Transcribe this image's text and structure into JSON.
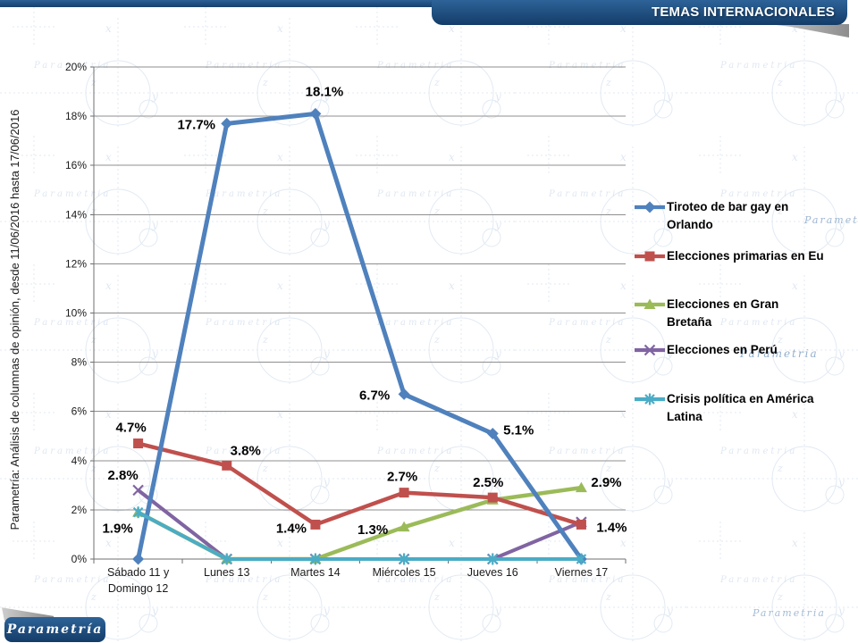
{
  "header": {
    "title": "TEMAS INTERNACIONALES"
  },
  "side_caption": {
    "text": "Parametría: Análisis de columnas de opinión, desde 11/06/2016 hasta 17/06/2016"
  },
  "watermark": {
    "text": "Parametria"
  },
  "logo": {
    "text": "Parametría"
  },
  "colors": {
    "header_bar": "#1c4a7c",
    "fold_gray": "#9a9a9a",
    "gridline": "#8f8f8f",
    "axis": "#6f6f6f",
    "watermark_blue": "#c9d8e9",
    "label_text": "#000000"
  },
  "chart_data": {
    "type": "line",
    "title": "TEMAS INTERNACIONALES",
    "grid": true,
    "legend_position": "right",
    "ylim": [
      0,
      20
    ],
    "categories": [
      "Sábado 11 y\nDomingo 12",
      "Lunes 13",
      "Martes 14",
      "Miércoles 15",
      "Jueves 16",
      "Viernes 17"
    ],
    "y_ticks": [
      {
        "value": 0,
        "label": "0%"
      },
      {
        "value": 2,
        "label": "2%"
      },
      {
        "value": 4,
        "label": "4%"
      },
      {
        "value": 6,
        "label": "6%"
      },
      {
        "value": 8,
        "label": "8%"
      },
      {
        "value": 10,
        "label": "10%"
      },
      {
        "value": 12,
        "label": "12%"
      },
      {
        "value": 14,
        "label": "14%"
      },
      {
        "value": 16,
        "label": "16%"
      },
      {
        "value": 18,
        "label": "18%"
      },
      {
        "value": 20,
        "label": "20%"
      }
    ],
    "series": [
      {
        "name": "Tiroteo de bar gay en Orlando",
        "color": "#4F81BD",
        "marker": "diamond",
        "values": [
          0,
          17.7,
          18.1,
          6.7,
          5.1,
          0
        ],
        "point_labels": [
          null,
          "17.7%",
          "18.1%",
          "6.7%",
          "5.1%",
          null
        ]
      },
      {
        "name": "Elecciones primarias en Eu",
        "color": "#C0504D",
        "marker": "square",
        "values": [
          4.7,
          3.8,
          1.4,
          2.7,
          2.5,
          1.4
        ],
        "point_labels": [
          "4.7%",
          "3.8%",
          "1.4%",
          "2.7%",
          "2.5%",
          "1.4%"
        ]
      },
      {
        "name": "Elecciones en Gran Bretaña",
        "color": "#9BBB59",
        "marker": "triangle",
        "values": [
          1.9,
          0,
          0,
          1.3,
          2.4,
          2.9
        ],
        "point_labels": [
          null,
          null,
          null,
          "1.3%",
          null,
          "2.9%"
        ]
      },
      {
        "name": "Elecciones en Perú",
        "color": "#8064A2",
        "marker": "x",
        "values": [
          2.8,
          0,
          0,
          0,
          0,
          1.5
        ],
        "point_labels": [
          "2.8%",
          null,
          null,
          null,
          null,
          null
        ]
      },
      {
        "name": "Crisis política en América Latina",
        "color": "#4BACC6",
        "marker": "asterisk",
        "values": [
          1.9,
          0,
          0,
          0,
          0,
          0
        ],
        "point_labels": [
          "1.9%",
          null,
          null,
          null,
          null,
          null
        ]
      }
    ]
  }
}
